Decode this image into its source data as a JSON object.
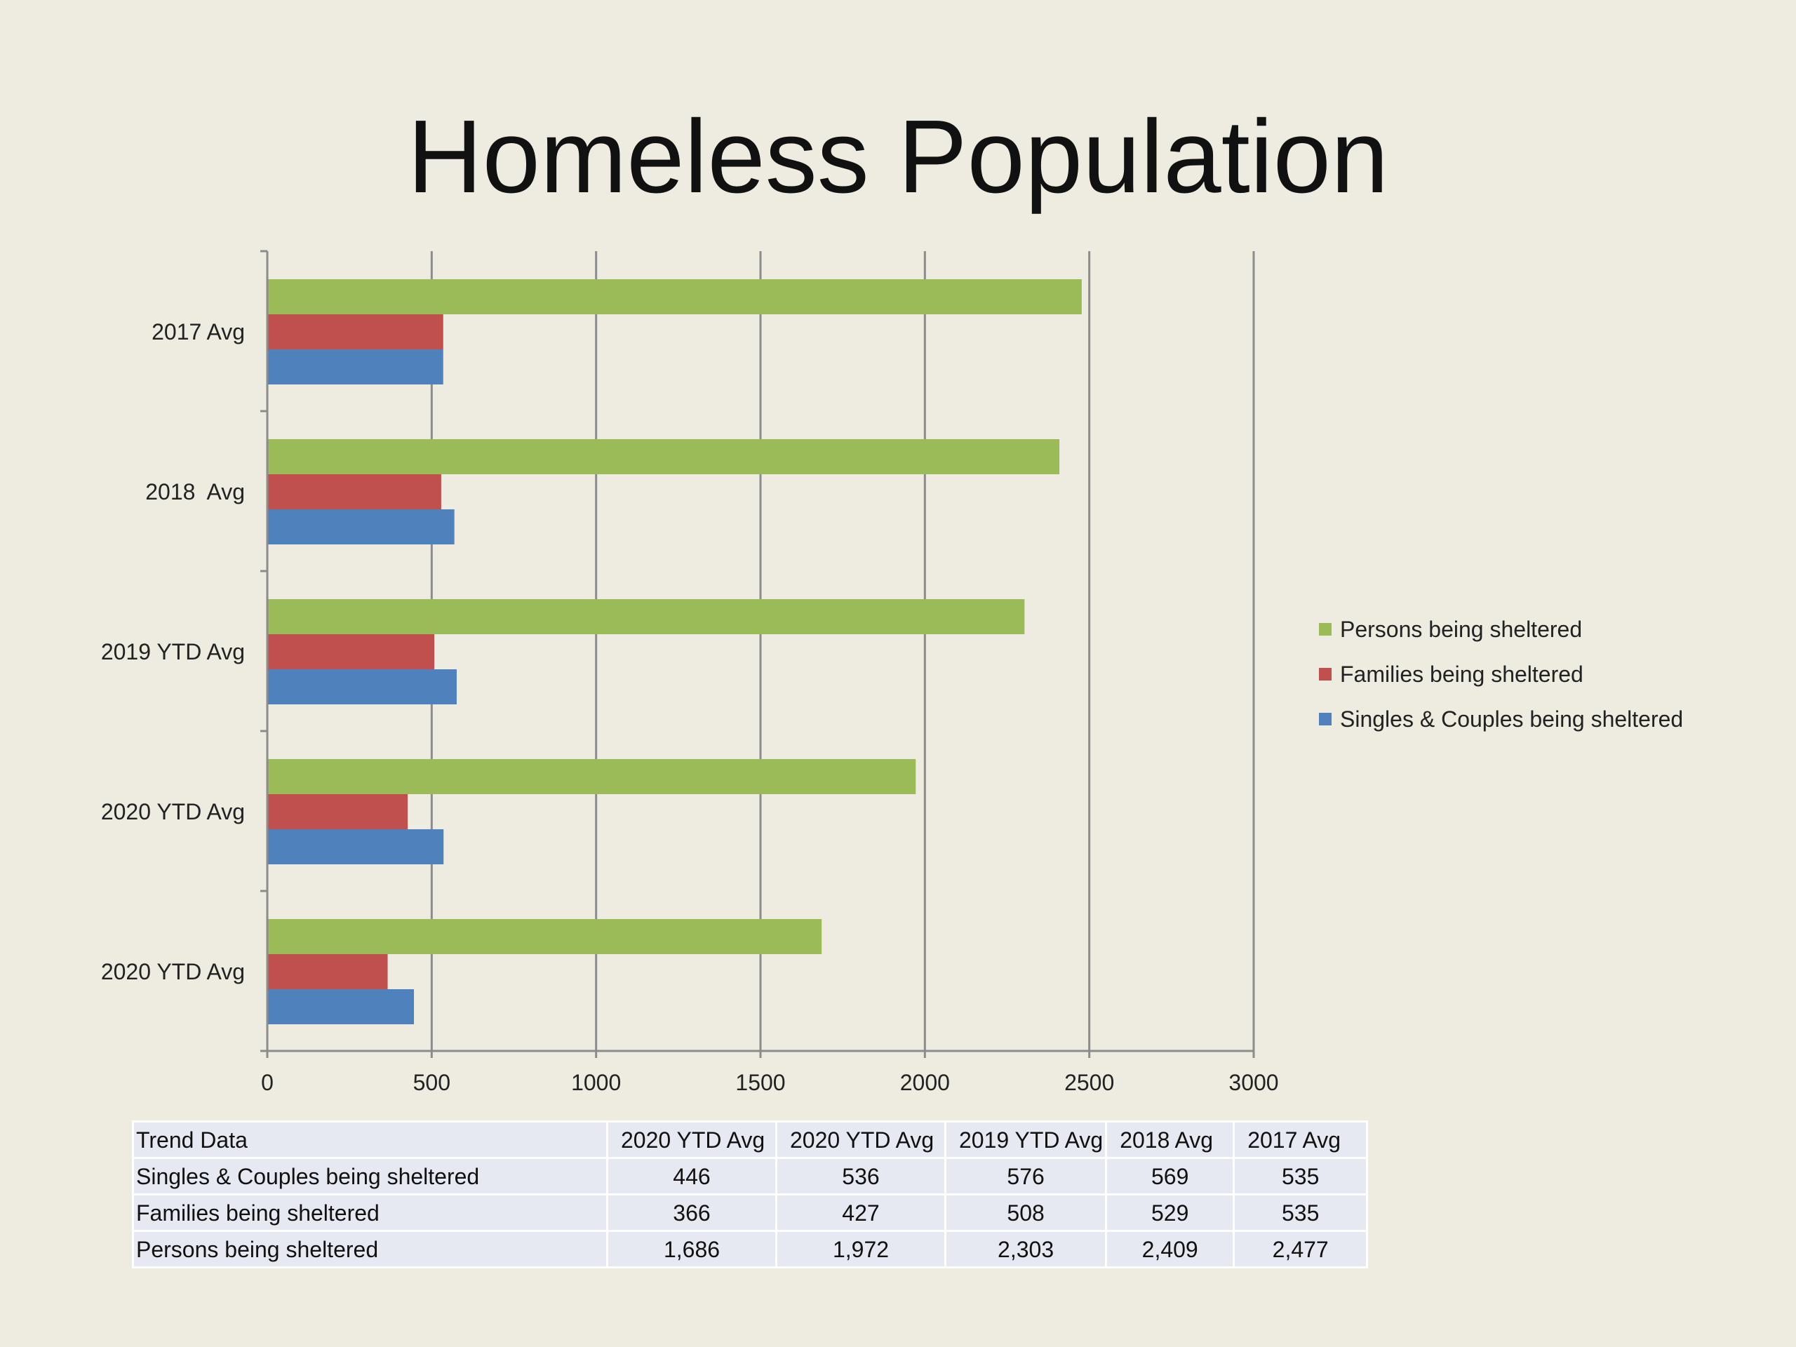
{
  "title": "Homeless Population",
  "colors": {
    "persons": "#9bbb59",
    "families": "#c0504d",
    "singles": "#4f81bd",
    "gridline": "#8c8c8c"
  },
  "legend": [
    {
      "label": "Persons being sheltered",
      "color": "#9bbb59"
    },
    {
      "label": "Families being sheltered",
      "color": "#c0504d"
    },
    {
      "label": "Singles & Couples being sheltered",
      "color": "#4f81bd"
    }
  ],
  "chart_data": {
    "type": "bar",
    "orientation": "horizontal",
    "categories": [
      "2017 Avg",
      "2018  Avg",
      "2019 YTD Avg",
      "2020 YTD Avg",
      "2020 YTD Avg"
    ],
    "series": [
      {
        "name": "Persons being sheltered",
        "values": [
          2477,
          2409,
          2303,
          1972,
          1686
        ]
      },
      {
        "name": "Families being sheltered",
        "values": [
          535,
          529,
          508,
          427,
          366
        ]
      },
      {
        "name": "Singles & Couples being sheltered",
        "values": [
          535,
          569,
          576,
          536,
          446
        ]
      }
    ],
    "xlim": [
      0,
      3000
    ],
    "xticks": [
      0,
      500,
      1000,
      1500,
      2000,
      2500,
      3000
    ],
    "grid": true,
    "legend_position": "right"
  },
  "table": {
    "header": [
      "Trend Data",
      "2020 YTD Avg",
      "2020 YTD Avg",
      "2019 YTD Avg",
      "2018  Avg",
      "2017 Avg"
    ],
    "rows": [
      [
        "Singles & Couples being sheltered",
        "446",
        "536",
        "576",
        "569",
        "535"
      ],
      [
        "Families being sheltered",
        "366",
        "427",
        "508",
        "529",
        "535"
      ],
      [
        "Persons being sheltered",
        "1,686",
        "1,972",
        "2,303",
        "2,409",
        "2,477"
      ]
    ]
  }
}
